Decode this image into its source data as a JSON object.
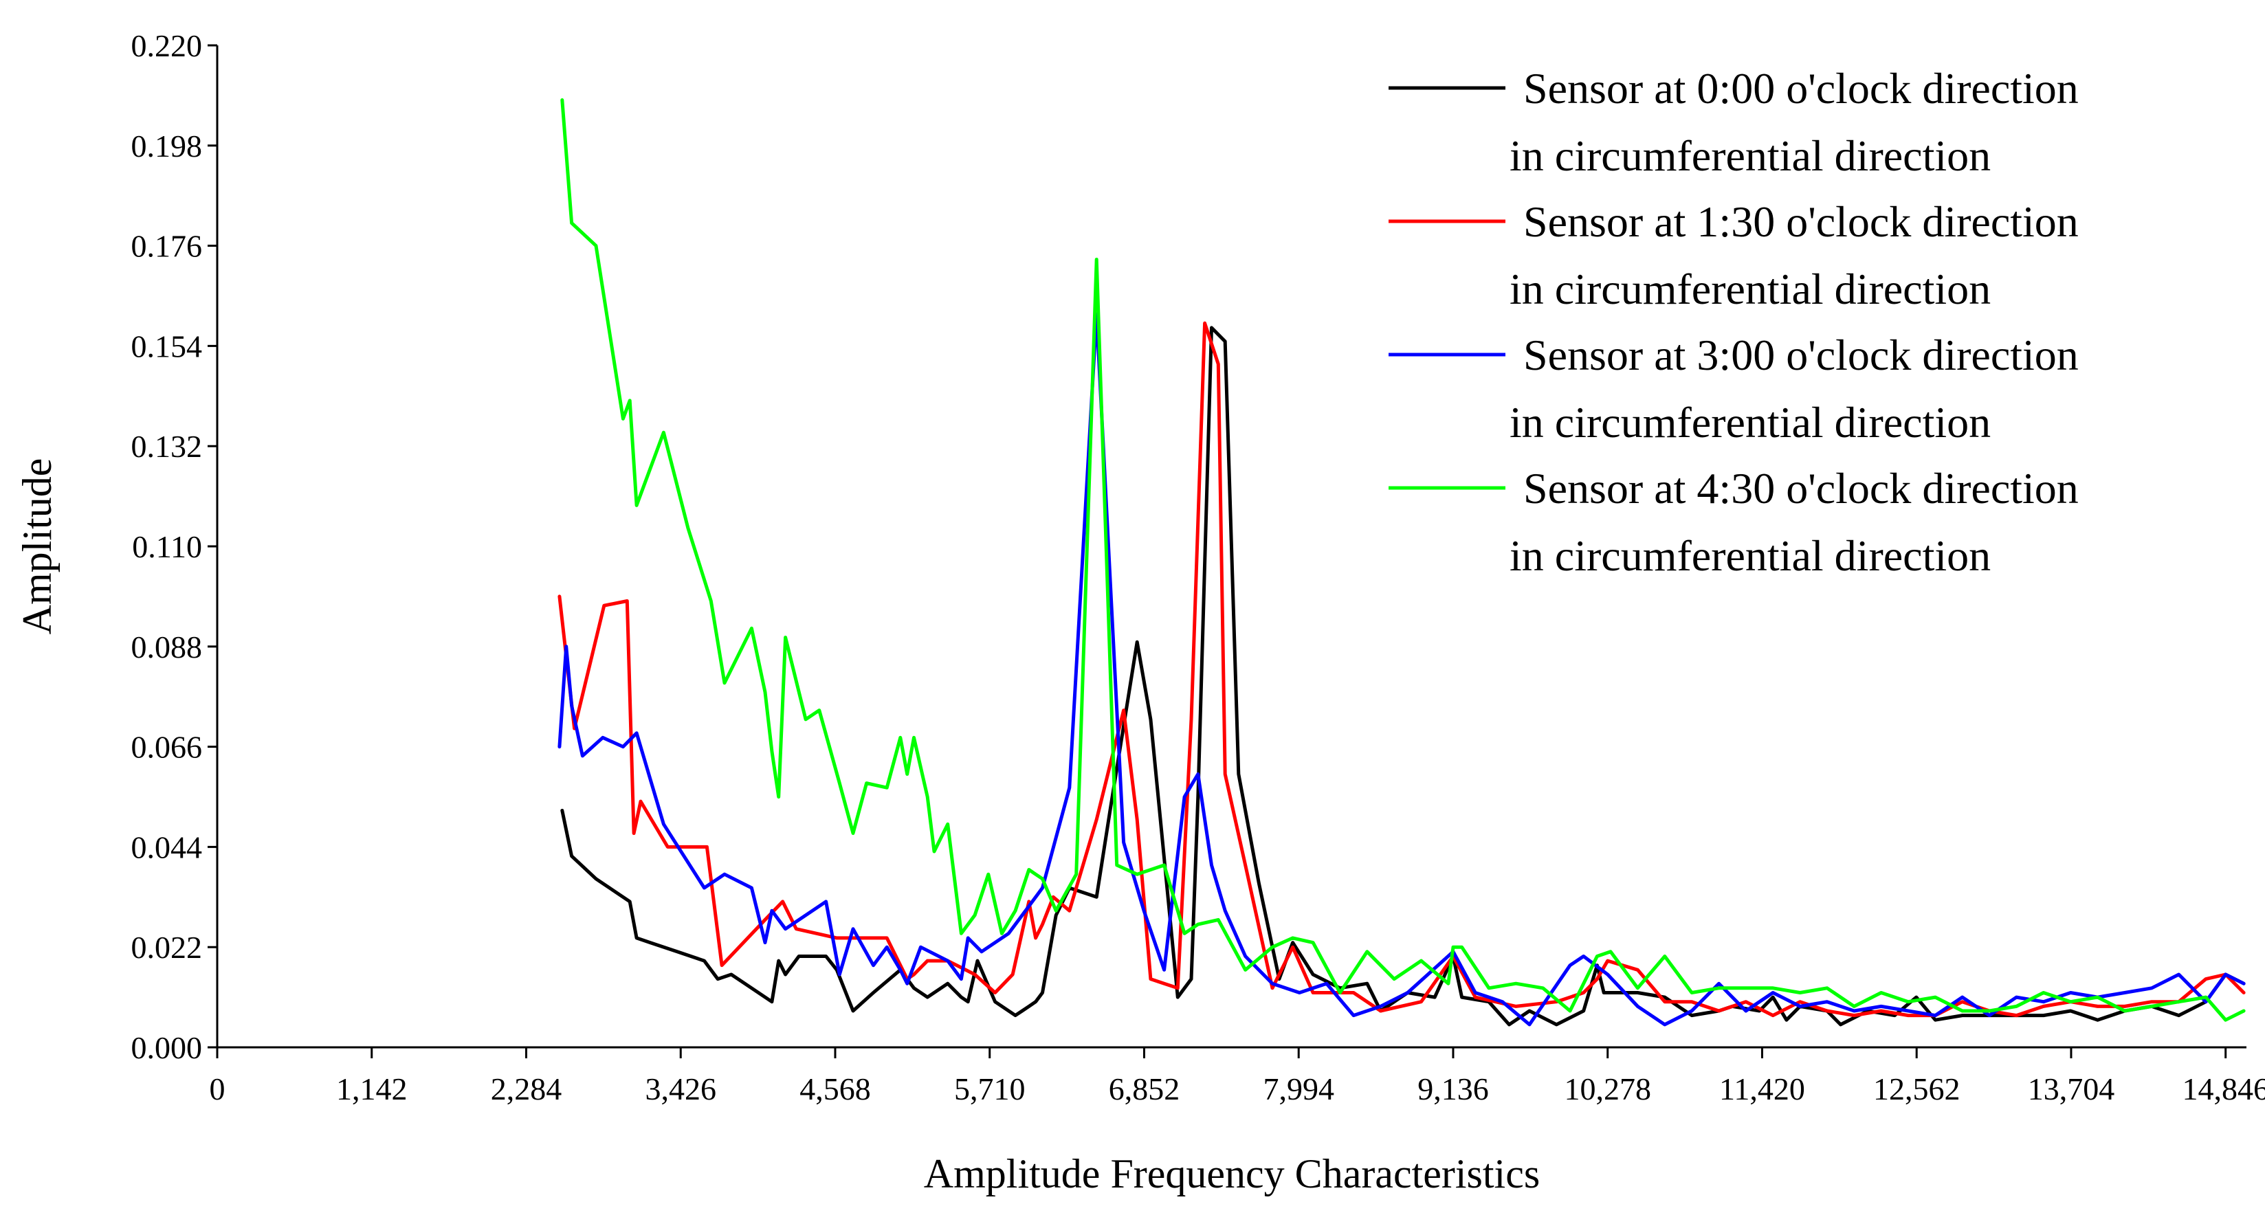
{
  "chart_data": {
    "type": "line",
    "title": "",
    "xlabel": "Amplitude Frequency Characteristics",
    "ylabel": "Amplitude",
    "xlim": [
      0,
      15000
    ],
    "ylim": [
      0,
      0.22
    ],
    "x_ticks": [
      0,
      1142,
      2284,
      3426,
      4568,
      5710,
      6852,
      7994,
      9136,
      10278,
      11420,
      12562,
      13704,
      14846
    ],
    "x_tick_labels": [
      "0",
      "1,142",
      "2,284",
      "3,426",
      "4,568",
      "5,710",
      "6,852",
      "7,994",
      "9,136",
      "10,278",
      "11,420",
      "12,562",
      "13,704",
      "14,846"
    ],
    "y_ticks": [
      0,
      0.022,
      0.044,
      0.066,
      0.088,
      0.11,
      0.132,
      0.154,
      0.176,
      0.198,
      0.22
    ],
    "y_tick_labels": [
      "0.000",
      "0.022",
      "0.044",
      "0.066",
      "0.088",
      "0.110",
      "0.132",
      "0.154",
      "0.176",
      "0.198",
      "0.220"
    ],
    "grid": false,
    "legend_position": "top-right",
    "series": [
      {
        "name": "Sensor at 0:00 o'clock direction",
        "name_line2": "in circumferential direction",
        "color": "#000000",
        "x": [
          2550,
          2620,
          2800,
          3050,
          3100,
          3200,
          3400,
          3600,
          3700,
          3800,
          3900,
          4100,
          4150,
          4200,
          4300,
          4500,
          4580,
          4700,
          4850,
          5050,
          5150,
          5250,
          5400,
          5500,
          5550,
          5620,
          5750,
          5900,
          5950,
          6000,
          6050,
          6100,
          6200,
          6300,
          6500,
          6600,
          6800,
          6900,
          7100,
          7200,
          7250,
          7350,
          7450,
          7550,
          7700,
          7850,
          7950,
          8100,
          8300,
          8500,
          8600,
          8800,
          9000,
          9136,
          9200,
          9400,
          9550,
          9700,
          9900,
          10100,
          10200,
          10250,
          10300,
          10500,
          10700,
          10900,
          11100,
          11200,
          11400,
          11500,
          11600,
          11700,
          11900,
          12000,
          12200,
          12400,
          12560,
          12700,
          12900,
          13100,
          13300,
          13500,
          13700,
          13900,
          14100,
          14300,
          14500,
          14700,
          14846,
          14980
        ],
        "y": [
          0.052,
          0.042,
          0.037,
          0.032,
          0.024,
          0.023,
          0.021,
          0.019,
          0.015,
          0.016,
          0.014,
          0.01,
          0.019,
          0.016,
          0.02,
          0.02,
          0.017,
          0.008,
          0.012,
          0.017,
          0.013,
          0.011,
          0.014,
          0.011,
          0.01,
          0.019,
          0.01,
          0.007,
          0.008,
          0.009,
          0.01,
          0.012,
          0.029,
          0.035,
          0.033,
          0.052,
          0.089,
          0.072,
          0.011,
          0.015,
          0.055,
          0.158,
          0.155,
          0.06,
          0.036,
          0.015,
          0.023,
          0.016,
          0.013,
          0.014,
          0.008,
          0.012,
          0.011,
          0.02,
          0.011,
          0.01,
          0.005,
          0.008,
          0.005,
          0.008,
          0.018,
          0.012,
          0.012,
          0.012,
          0.011,
          0.007,
          0.008,
          0.009,
          0.008,
          0.011,
          0.006,
          0.009,
          0.008,
          0.005,
          0.008,
          0.007,
          0.011,
          0.006,
          0.007,
          0.007,
          0.007,
          0.007,
          0.008,
          0.006,
          0.008,
          0.009,
          0.007,
          0.01,
          0.016,
          0.014
        ]
      },
      {
        "name": "Sensor at 1:30 o'clock direction",
        "name_line2": "in circumferential direction",
        "color": "#ff0000",
        "x": [
          2530,
          2640,
          2860,
          3030,
          3080,
          3130,
          3330,
          3620,
          3730,
          4050,
          4180,
          4280,
          4580,
          4950,
          5100,
          5150,
          5250,
          5400,
          5600,
          5750,
          5880,
          6000,
          6050,
          6100,
          6180,
          6300,
          6500,
          6700,
          6800,
          6900,
          7000,
          7100,
          7200,
          7300,
          7400,
          7450,
          7600,
          7800,
          7950,
          8100,
          8400,
          8600,
          8900,
          9136,
          9300,
          9600,
          9900,
          10100,
          10200,
          10278,
          10500,
          10700,
          10900,
          11100,
          11300,
          11500,
          11700,
          11900,
          12100,
          12300,
          12500,
          12700,
          12900,
          13100,
          13300,
          13500,
          13700,
          13900,
          14100,
          14300,
          14500,
          14700,
          14846,
          14980
        ],
        "y": [
          0.099,
          0.07,
          0.097,
          0.098,
          0.047,
          0.054,
          0.044,
          0.044,
          0.018,
          0.028,
          0.032,
          0.026,
          0.024,
          0.024,
          0.015,
          0.016,
          0.019,
          0.019,
          0.016,
          0.012,
          0.016,
          0.032,
          0.024,
          0.027,
          0.033,
          0.03,
          0.05,
          0.074,
          0.05,
          0.015,
          0.014,
          0.013,
          0.072,
          0.159,
          0.15,
          0.06,
          0.04,
          0.013,
          0.022,
          0.012,
          0.012,
          0.008,
          0.01,
          0.02,
          0.011,
          0.009,
          0.01,
          0.012,
          0.015,
          0.019,
          0.017,
          0.01,
          0.01,
          0.008,
          0.01,
          0.007,
          0.01,
          0.008,
          0.007,
          0.008,
          0.007,
          0.007,
          0.01,
          0.008,
          0.007,
          0.009,
          0.01,
          0.009,
          0.009,
          0.01,
          0.01,
          0.015,
          0.016,
          0.012
        ]
      },
      {
        "name": "Sensor at 3:00 o'clock direction",
        "name_line2": "in circumferential direction",
        "color": "#0000ff",
        "x": [
          2530,
          2580,
          2620,
          2700,
          2850,
          3000,
          3100,
          3300,
          3600,
          3750,
          3950,
          4050,
          4100,
          4200,
          4500,
          4600,
          4700,
          4850,
          4950,
          5050,
          5100,
          5200,
          5400,
          5500,
          5550,
          5650,
          5850,
          6000,
          6100,
          6300,
          6500,
          6700,
          6850,
          7000,
          7150,
          7250,
          7350,
          7450,
          7600,
          7800,
          8000,
          8200,
          8400,
          8600,
          8800,
          9136,
          9300,
          9500,
          9700,
          10000,
          10100,
          10278,
          10500,
          10700,
          10900,
          11100,
          11300,
          11500,
          11700,
          11900,
          12100,
          12300,
          12500,
          12700,
          12900,
          13100,
          13300,
          13500,
          13700,
          13900,
          14100,
          14300,
          14500,
          14700,
          14846,
          14980
        ],
        "y": [
          0.066,
          0.088,
          0.075,
          0.064,
          0.068,
          0.066,
          0.069,
          0.049,
          0.035,
          0.038,
          0.035,
          0.023,
          0.03,
          0.026,
          0.032,
          0.016,
          0.026,
          0.018,
          0.022,
          0.017,
          0.014,
          0.022,
          0.019,
          0.015,
          0.024,
          0.021,
          0.025,
          0.031,
          0.035,
          0.057,
          0.161,
          0.045,
          0.03,
          0.017,
          0.055,
          0.06,
          0.04,
          0.03,
          0.02,
          0.014,
          0.012,
          0.014,
          0.007,
          0.009,
          0.012,
          0.021,
          0.012,
          0.01,
          0.005,
          0.018,
          0.02,
          0.016,
          0.009,
          0.005,
          0.008,
          0.014,
          0.008,
          0.012,
          0.009,
          0.01,
          0.008,
          0.009,
          0.008,
          0.007,
          0.011,
          0.007,
          0.011,
          0.01,
          0.012,
          0.011,
          0.012,
          0.013,
          0.016,
          0.01,
          0.016,
          0.014
        ]
      },
      {
        "name": "Sensor at 4:30 o'clock direction",
        "name_line2": "in circumferential direction",
        "color": "#00ff00",
        "x": [
          2550,
          2620,
          2800,
          3000,
          3050,
          3100,
          3300,
          3480,
          3650,
          3750,
          3950,
          4050,
          4100,
          4150,
          4200,
          4350,
          4450,
          4600,
          4700,
          4800,
          4950,
          5050,
          5100,
          5150,
          5250,
          5300,
          5400,
          5500,
          5600,
          5700,
          5800,
          5900,
          6000,
          6050,
          6100,
          6200,
          6350,
          6500,
          6650,
          6800,
          7000,
          7150,
          7250,
          7400,
          7600,
          7800,
          7950,
          8100,
          8300,
          8500,
          8700,
          8900,
          9100,
          9136,
          9200,
          9400,
          9600,
          9800,
          10000,
          10200,
          10300,
          10500,
          10700,
          10900,
          11100,
          11300,
          11500,
          11700,
          11900,
          12100,
          12300,
          12500,
          12700,
          12900,
          13100,
          13300,
          13500,
          13700,
          13900,
          14100,
          14300,
          14500,
          14700,
          14846,
          14980
        ],
        "y": [
          0.208,
          0.181,
          0.176,
          0.138,
          0.142,
          0.119,
          0.135,
          0.114,
          0.098,
          0.08,
          0.092,
          0.078,
          0.065,
          0.055,
          0.09,
          0.072,
          0.074,
          0.058,
          0.047,
          0.058,
          0.057,
          0.068,
          0.06,
          0.068,
          0.055,
          0.043,
          0.049,
          0.025,
          0.029,
          0.038,
          0.025,
          0.03,
          0.039,
          0.038,
          0.037,
          0.03,
          0.038,
          0.173,
          0.04,
          0.038,
          0.04,
          0.025,
          0.027,
          0.028,
          0.017,
          0.022,
          0.024,
          0.023,
          0.012,
          0.021,
          0.015,
          0.019,
          0.014,
          0.022,
          0.022,
          0.013,
          0.014,
          0.013,
          0.008,
          0.02,
          0.021,
          0.013,
          0.02,
          0.012,
          0.013,
          0.013,
          0.013,
          0.012,
          0.013,
          0.009,
          0.012,
          0.01,
          0.011,
          0.008,
          0.008,
          0.009,
          0.012,
          0.01,
          0.011,
          0.008,
          0.009,
          0.01,
          0.011,
          0.006,
          0.008
        ]
      }
    ]
  }
}
